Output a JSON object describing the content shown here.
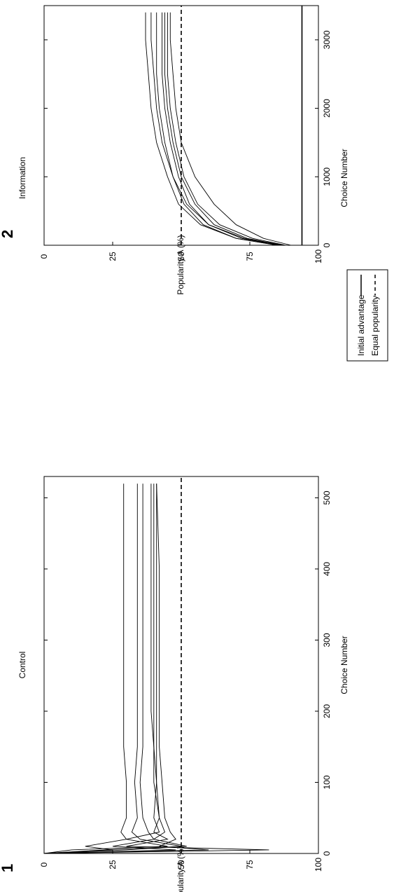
{
  "chart_data": [
    {
      "type": "line",
      "panel_number": "1",
      "title": "Control",
      "xlabel": "Choice Number",
      "ylabel": "Popularity A (%)",
      "xlim": [
        0,
        530
      ],
      "ylim": [
        0,
        100
      ],
      "xticks": [
        0,
        100,
        200,
        300,
        400,
        500
      ],
      "yticks": [
        0,
        25,
        50,
        75,
        100
      ],
      "reference_lines": [
        {
          "style": "dashed",
          "y": 50
        }
      ],
      "series": [
        {
          "x": [
            0,
            5,
            10,
            20,
            30,
            50,
            100,
            150,
            200,
            300,
            400,
            520
          ],
          "y": [
            0,
            60,
            42,
            48,
            46,
            44,
            43,
            42,
            42,
            42,
            42,
            41
          ]
        },
        {
          "x": [
            0,
            5,
            10,
            20,
            30,
            50,
            100,
            150,
            200,
            300,
            400,
            520
          ],
          "y": [
            0,
            22,
            52,
            40,
            44,
            42,
            41,
            41,
            41,
            41,
            41,
            41
          ]
        },
        {
          "x": [
            0,
            5,
            10,
            20,
            30,
            50,
            100,
            150,
            200,
            300,
            400,
            520
          ],
          "y": [
            0,
            82,
            30,
            45,
            40,
            42,
            40,
            40,
            40,
            40,
            40,
            40
          ]
        },
        {
          "x": [
            0,
            5,
            10,
            20,
            30,
            50,
            100,
            150,
            200,
            300,
            400,
            520
          ],
          "y": [
            0,
            10,
            45,
            30,
            42,
            40,
            41,
            40,
            39,
            39,
            39,
            39
          ]
        },
        {
          "x": [
            0,
            5,
            10,
            20,
            30,
            50,
            100,
            150,
            200,
            300,
            400,
            520
          ],
          "y": [
            0,
            48,
            25,
            40,
            38,
            36,
            35,
            36,
            36,
            36,
            36,
            36
          ]
        },
        {
          "x": [
            0,
            5,
            10,
            20,
            30,
            50,
            100,
            150,
            200,
            300,
            400,
            520
          ],
          "y": [
            0,
            30,
            50,
            35,
            32,
            34,
            33,
            34,
            34,
            34,
            34,
            34
          ]
        },
        {
          "x": [
            0,
            5,
            10,
            20,
            30,
            50,
            100,
            150,
            200,
            300,
            400,
            520
          ],
          "y": [
            0,
            25,
            15,
            30,
            28,
            30,
            30,
            29,
            29,
            29,
            29,
            29
          ]
        }
      ]
    },
    {
      "type": "line",
      "panel_number": "2",
      "title": "Information",
      "xlabel": "Choice Number",
      "ylabel": "Popularity A (%)",
      "xlim": [
        0,
        3500
      ],
      "ylim": [
        0,
        100
      ],
      "xticks": [
        0,
        1000,
        2000,
        3000
      ],
      "yticks": [
        0,
        25,
        50,
        75,
        100
      ],
      "reference_lines": [
        {
          "style": "solid",
          "y": 94
        },
        {
          "style": "dashed",
          "y": 50
        }
      ],
      "series": [
        {
          "x": [
            0,
            100,
            300,
            600,
            1000,
            1500,
            2000,
            2500,
            3000,
            3400
          ],
          "y": [
            90,
            80,
            70,
            62,
            55,
            50,
            48,
            47,
            46,
            46
          ]
        },
        {
          "x": [
            0,
            100,
            300,
            600,
            1000,
            1500,
            2000,
            2500,
            3000,
            3400
          ],
          "y": [
            88,
            76,
            64,
            56,
            51,
            48,
            46,
            45,
            45,
            45
          ]
        },
        {
          "x": [
            0,
            100,
            300,
            600,
            1000,
            1500,
            2000,
            2500,
            3000,
            3400
          ],
          "y": [
            87,
            74,
            62,
            55,
            50,
            47,
            45,
            44,
            44,
            44
          ]
        },
        {
          "x": [
            0,
            100,
            300,
            600,
            1000,
            1500,
            2000,
            2500,
            3000,
            3400
          ],
          "y": [
            86,
            72,
            60,
            53,
            49,
            46,
            44,
            43,
            43,
            43
          ]
        },
        {
          "x": [
            0,
            100,
            300,
            600,
            1000,
            1500,
            2000,
            2500,
            3000,
            3400
          ],
          "y": [
            85,
            70,
            58,
            51,
            47,
            44,
            42,
            41,
            41,
            41
          ]
        },
        {
          "x": [
            0,
            100,
            300,
            600,
            1000,
            1500,
            2000,
            2500,
            3000,
            3400
          ],
          "y": [
            87,
            73,
            60,
            52,
            47,
            43,
            41,
            40,
            39,
            39
          ]
        },
        {
          "x": [
            0,
            100,
            300,
            600,
            1000,
            1500,
            2000,
            2500,
            3000,
            3400
          ],
          "y": [
            85,
            70,
            57,
            49,
            45,
            41,
            39,
            38,
            37,
            37
          ]
        }
      ]
    }
  ],
  "legend": {
    "position": "bottom-right",
    "items": [
      {
        "label": "Initial advantage",
        "style": "solid"
      },
      {
        "label": "Equal popularity",
        "style": "dashed"
      }
    ]
  }
}
